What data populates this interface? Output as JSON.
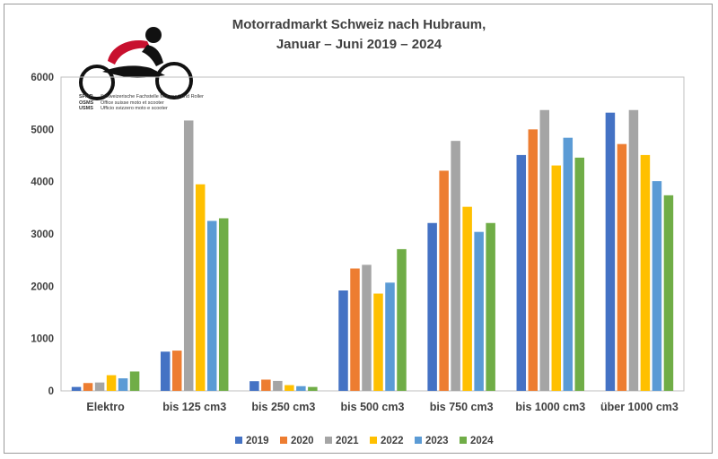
{
  "chart_data": {
    "type": "bar",
    "title_line1": "Motorradmarkt Schweiz nach Hubraum,",
    "title_line2": "Januar – Juni 2019 – 2024",
    "categories": [
      "Elektro",
      "bis 125 cm3",
      "bis 250 cm3",
      "bis 500 cm3",
      "bis 750 cm3",
      "bis 1000 cm3",
      "über 1000 cm3"
    ],
    "ylim": [
      0,
      6000
    ],
    "yticks": [
      0,
      1000,
      2000,
      3000,
      4000,
      5000,
      6000
    ],
    "grid": false,
    "legend_position": "bottom",
    "series": [
      {
        "name": "2019",
        "color": "#4472C4",
        "values": [
          75,
          750,
          185,
          1920,
          3210,
          4510,
          5320
        ]
      },
      {
        "name": "2020",
        "color": "#ED7D31",
        "values": [
          150,
          770,
          215,
          2340,
          4210,
          5000,
          4720
        ]
      },
      {
        "name": "2021",
        "color": "#A5A5A5",
        "values": [
          160,
          5170,
          190,
          2410,
          4780,
          5370,
          5370
        ]
      },
      {
        "name": "2022",
        "color": "#FFC000",
        "values": [
          300,
          3950,
          110,
          1860,
          3520,
          4310,
          4510
        ]
      },
      {
        "name": "2023",
        "color": "#5B9BD5",
        "values": [
          240,
          3250,
          90,
          2070,
          3040,
          4840,
          4010
        ]
      },
      {
        "name": "2024",
        "color": "#70AD47",
        "values": [
          370,
          3300,
          75,
          2710,
          3210,
          4460,
          3740
        ]
      }
    ]
  },
  "logo": {
    "line1_abbr": "SFMR",
    "line1_text": "Schweizerische Fachstelle Motorrad und Roller",
    "line2_abbr": "OSMS",
    "line2_text": "Office suisse moto et scooter",
    "line3_abbr": "USMS",
    "line3_text": "Ufficio svizzero moto e scooter",
    "accent_color": "#C8102E"
  }
}
